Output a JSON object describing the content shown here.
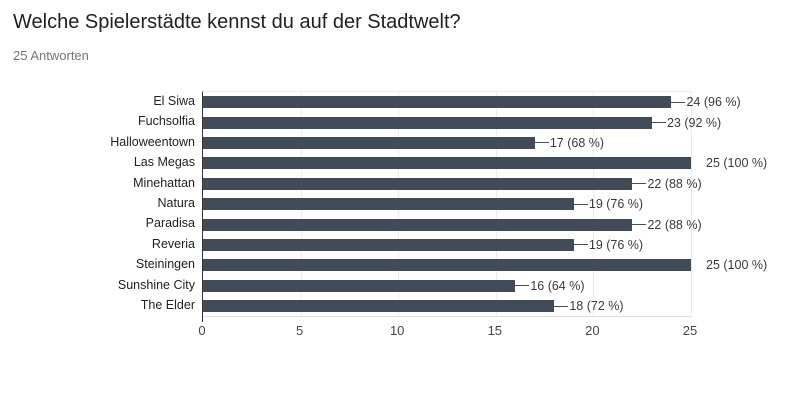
{
  "header": {
    "title": "Welche Spielerstädte kennst du auf der Stadtwelt?",
    "subtitle": "25 Antworten"
  },
  "chart_data": {
    "type": "bar",
    "orientation": "horizontal",
    "title": "Welche Spielerstädte kennst du auf der Stadtwelt?",
    "subtitle": "25 Antworten",
    "categories": [
      "El Siwa",
      "Fuchsolfia",
      "Halloweentown",
      "Las Megas",
      "Minehattan",
      "Natura",
      "Paradisa",
      "Reveria",
      "Steiningen",
      "Sunshine City",
      "The Elder"
    ],
    "values": [
      24,
      23,
      17,
      25,
      22,
      19,
      22,
      19,
      25,
      16,
      18
    ],
    "value_labels": [
      "24 (96 %)",
      "23 (92 %)",
      "17 (68 %)",
      "25 (100 %)",
      "22 (88 %)",
      "19 (76 %)",
      "22 (88 %)",
      "19 (76 %)",
      "25 (100 %)",
      "16 (64 %)",
      "18 (72 %)"
    ],
    "xlabel": "",
    "ylabel": "",
    "xlim": [
      0,
      25
    ],
    "x_ticks": [
      0,
      5,
      10,
      15,
      20,
      25
    ],
    "grid": true,
    "legend": "none",
    "colors": {
      "bar": "#424b58",
      "gridline": "#ececec",
      "axis_line": "#333333",
      "plot_border": "#e0e0e0",
      "leader_line": "#4d4d4d",
      "category_label": "#222222",
      "value_label": "#3a3a3a",
      "tick_label": "#444444",
      "title": "#212121",
      "subtitle": "#757575"
    }
  }
}
